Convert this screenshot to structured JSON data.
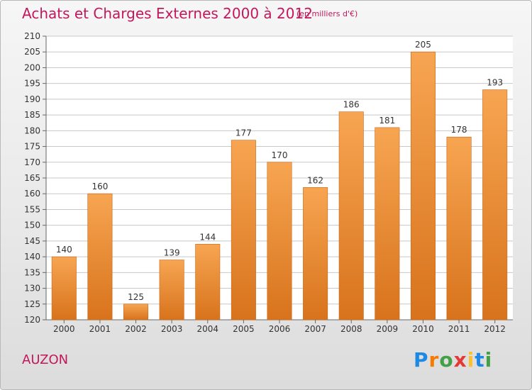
{
  "header": {
    "title": "Achats et Charges Externes 2000 à 2012",
    "subtitle": "(en milliers d'€)"
  },
  "footer": {
    "commune": "AUZON",
    "logo_text": "Proxiti"
  },
  "colors": {
    "accent": "#c2185b",
    "bar_top": "#f7a552",
    "bar_bottom": "#d8731c",
    "grid": "#c8c8c8"
  },
  "chart_data": {
    "type": "bar",
    "categories": [
      "2000",
      "2001",
      "2002",
      "2003",
      "2004",
      "2005",
      "2006",
      "2007",
      "2008",
      "2009",
      "2010",
      "2011",
      "2012"
    ],
    "values": [
      140,
      160,
      125,
      139,
      144,
      177,
      170,
      162,
      186,
      181,
      205,
      178,
      193
    ],
    "ylim": [
      120,
      210
    ],
    "ytick_step": 5,
    "grid": true
  }
}
